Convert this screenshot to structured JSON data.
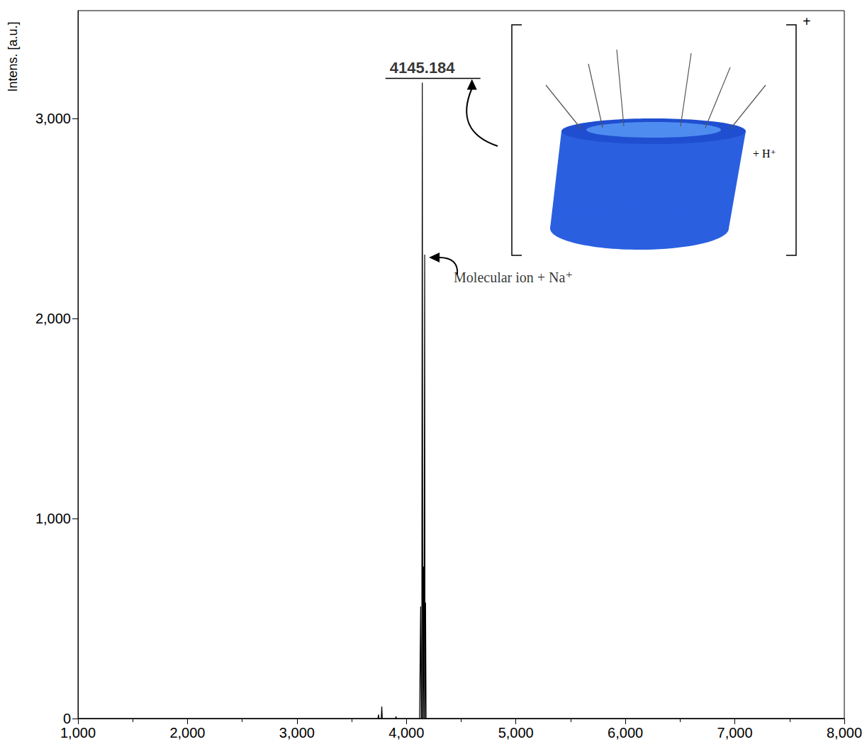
{
  "chart_data": {
    "type": "line",
    "y_label": "Intens. [a.u.]",
    "x": [
      1000,
      3740,
      3745,
      3750,
      3770,
      3775,
      3780,
      3900,
      3905,
      3910,
      4120,
      4130,
      4135,
      4140,
      4145.184,
      4150,
      4155,
      4160,
      4164,
      4167,
      4170,
      4175,
      4180,
      8000
    ],
    "values": [
      0,
      0,
      20,
      0,
      0,
      60,
      0,
      0,
      10,
      0,
      0,
      560,
      0,
      0,
      3180,
      0,
      760,
      0,
      0,
      2320,
      0,
      580,
      0,
      0
    ],
    "color": "#000000",
    "xlim": [
      1000,
      8000
    ],
    "xticks": [
      1000,
      2000,
      3000,
      4000,
      5000,
      6000,
      7000,
      8000
    ],
    "ylim": [
      0,
      3540
    ],
    "yticks": [
      0,
      1000,
      2000,
      3000
    ],
    "grid": false,
    "annotations": [
      {
        "text": "4145.184",
        "x": 4145.184,
        "y": 3180
      },
      {
        "text": "Molecular ion + Na⁺",
        "x": 4167,
        "y": 2320
      }
    ],
    "inset": {
      "charge": "+",
      "adduct": "+ H⁺"
    }
  }
}
